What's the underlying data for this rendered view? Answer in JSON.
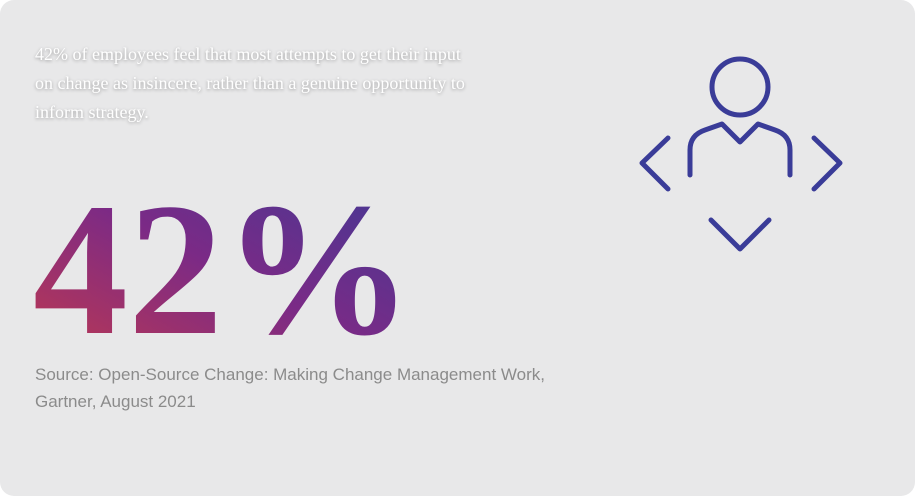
{
  "statement": "42% of employees feel that most attempts to get their input on change as insincere, rather than a genuine opportunity to inform strategy.",
  "stat": "42%",
  "source": "Source: Open-Source Change: Making Change Management Work, Gartner, August 2021"
}
